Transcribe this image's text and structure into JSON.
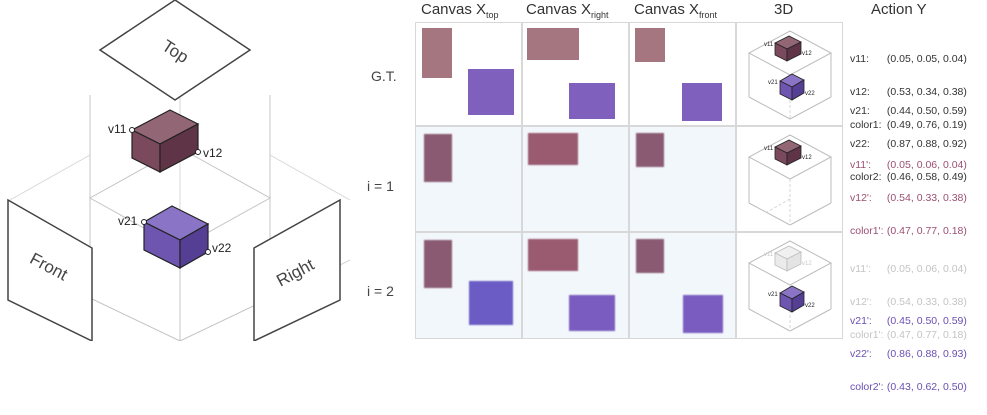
{
  "left_diagram": {
    "faces": {
      "top": "Top",
      "front": "Front",
      "right": "Right"
    },
    "vertex_labels": {
      "v11": "v11",
      "v12": "v12",
      "v21": "v21",
      "v22": "v22"
    },
    "colors": {
      "box1": "#7a4a5c",
      "box1_top": "#936676",
      "box1_side": "#5e3446",
      "box2": "#6e55b0",
      "box2_top": "#8a74c6",
      "box2_side": "#553f95",
      "wire": "#bdbdbd",
      "panel_stroke": "#444444"
    }
  },
  "headers": {
    "canvas_top": {
      "base": "Canvas X",
      "sub": "top"
    },
    "canvas_right": {
      "base": "Canvas X",
      "sub": "right"
    },
    "canvas_front": {
      "base": "Canvas X",
      "sub": "front"
    },
    "threed": "3D",
    "action": "Action Y"
  },
  "rows": [
    {
      "label": "G.T."
    },
    {
      "label": "i = 1"
    },
    {
      "label": "i = 2"
    }
  ],
  "actions": {
    "gt": {
      "block1": [
        {
          "k": "v11:",
          "v": "(0.05, 0.05, 0.04)"
        },
        {
          "k": "v12:",
          "v": "(0.53, 0.34, 0.38)"
        },
        {
          "k": "color1:",
          "v": "(0.49, 0.76, 0.19)"
        }
      ],
      "block2": [
        {
          "k": "v21:",
          "v": "(0.44, 0.50, 0.59)"
        },
        {
          "k": "v22:",
          "v": "(0.87, 0.88, 0.92)"
        },
        {
          "k": "color2:",
          "v": "(0.46, 0.58, 0.49)"
        }
      ]
    },
    "i1": [
      {
        "k": "v11':",
        "v": "(0.05, 0.06, 0.04)"
      },
      {
        "k": "v12':",
        "v": "(0.54, 0.33, 0.38)"
      },
      {
        "k": "color1':",
        "v": "(0.47, 0.77, 0.18)"
      }
    ],
    "i2_faded": [
      {
        "k": "v11':",
        "v": "(0.05, 0.06, 0.04)"
      },
      {
        "k": "v12':",
        "v": "(0.54, 0.33, 0.38)"
      },
      {
        "k": "color1':",
        "v": "(0.47, 0.77, 0.18)"
      }
    ],
    "i2": [
      {
        "k": "v21':",
        "v": "(0.45, 0.50, 0.59)"
      },
      {
        "k": "v22':",
        "v": "(0.86, 0.88, 0.93)"
      },
      {
        "k": "color2':",
        "v": "(0.43, 0.62, 0.50)"
      }
    ]
  },
  "text_colors": {
    "gt": "#333333",
    "box1": "#9b4f72",
    "box2": "#6a4fb3",
    "faded": "#c4c4c4"
  },
  "rect_colors": {
    "gt_box1": "#a57680",
    "gt_box2": "#7f60bd",
    "gen_box1": "#8a5a72",
    "gen_box2": "#7a5cc0"
  }
}
